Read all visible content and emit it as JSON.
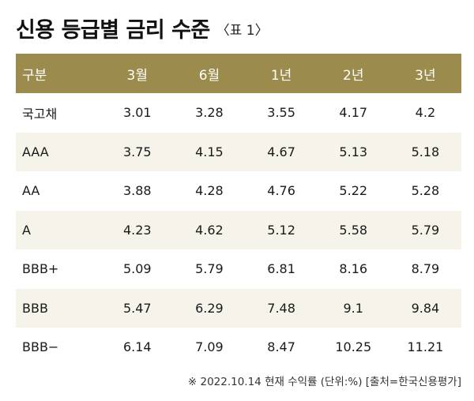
{
  "title": "신용 등급별 금리 수준",
  "title_tag": "〈표 1〉",
  "colors": {
    "header_bg": "#9b8b4c",
    "alt_row_bg": "#f6f3ea"
  },
  "table": {
    "headers": [
      "구분",
      "3월",
      "6월",
      "1년",
      "2년",
      "3년"
    ],
    "rows": [
      [
        "국고채",
        "3.01",
        "3.28",
        "3.55",
        "4.17",
        "4.2"
      ],
      [
        "AAA",
        "3.75",
        "4.15",
        "4.67",
        "5.13",
        "5.18"
      ],
      [
        "AA",
        "3.88",
        "4.28",
        "4.76",
        "5.22",
        "5.28"
      ],
      [
        "A",
        "4.23",
        "4.62",
        "5.12",
        "5.58",
        "5.79"
      ],
      [
        "BBB+",
        "5.09",
        "5.79",
        "6.81",
        "8.16",
        "8.79"
      ],
      [
        "BBB",
        "5.47",
        "6.29",
        "7.48",
        "9.1",
        "9.84"
      ],
      [
        "BBB−",
        "6.14",
        "7.09",
        "8.47",
        "10.25",
        "11.21"
      ]
    ]
  },
  "footnote": "※ 2022.10.14 현재 수익률 (단위:%) [출처=한국신용평가]"
}
